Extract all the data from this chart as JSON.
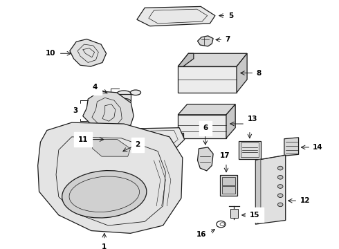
{
  "background_color": "#ffffff",
  "fig_width": 4.9,
  "fig_height": 3.6,
  "dpi": 100,
  "line_color": "#1a1a1a",
  "label_fontsize": 7.5,
  "label_fontweight": "bold",
  "lw": 0.9
}
